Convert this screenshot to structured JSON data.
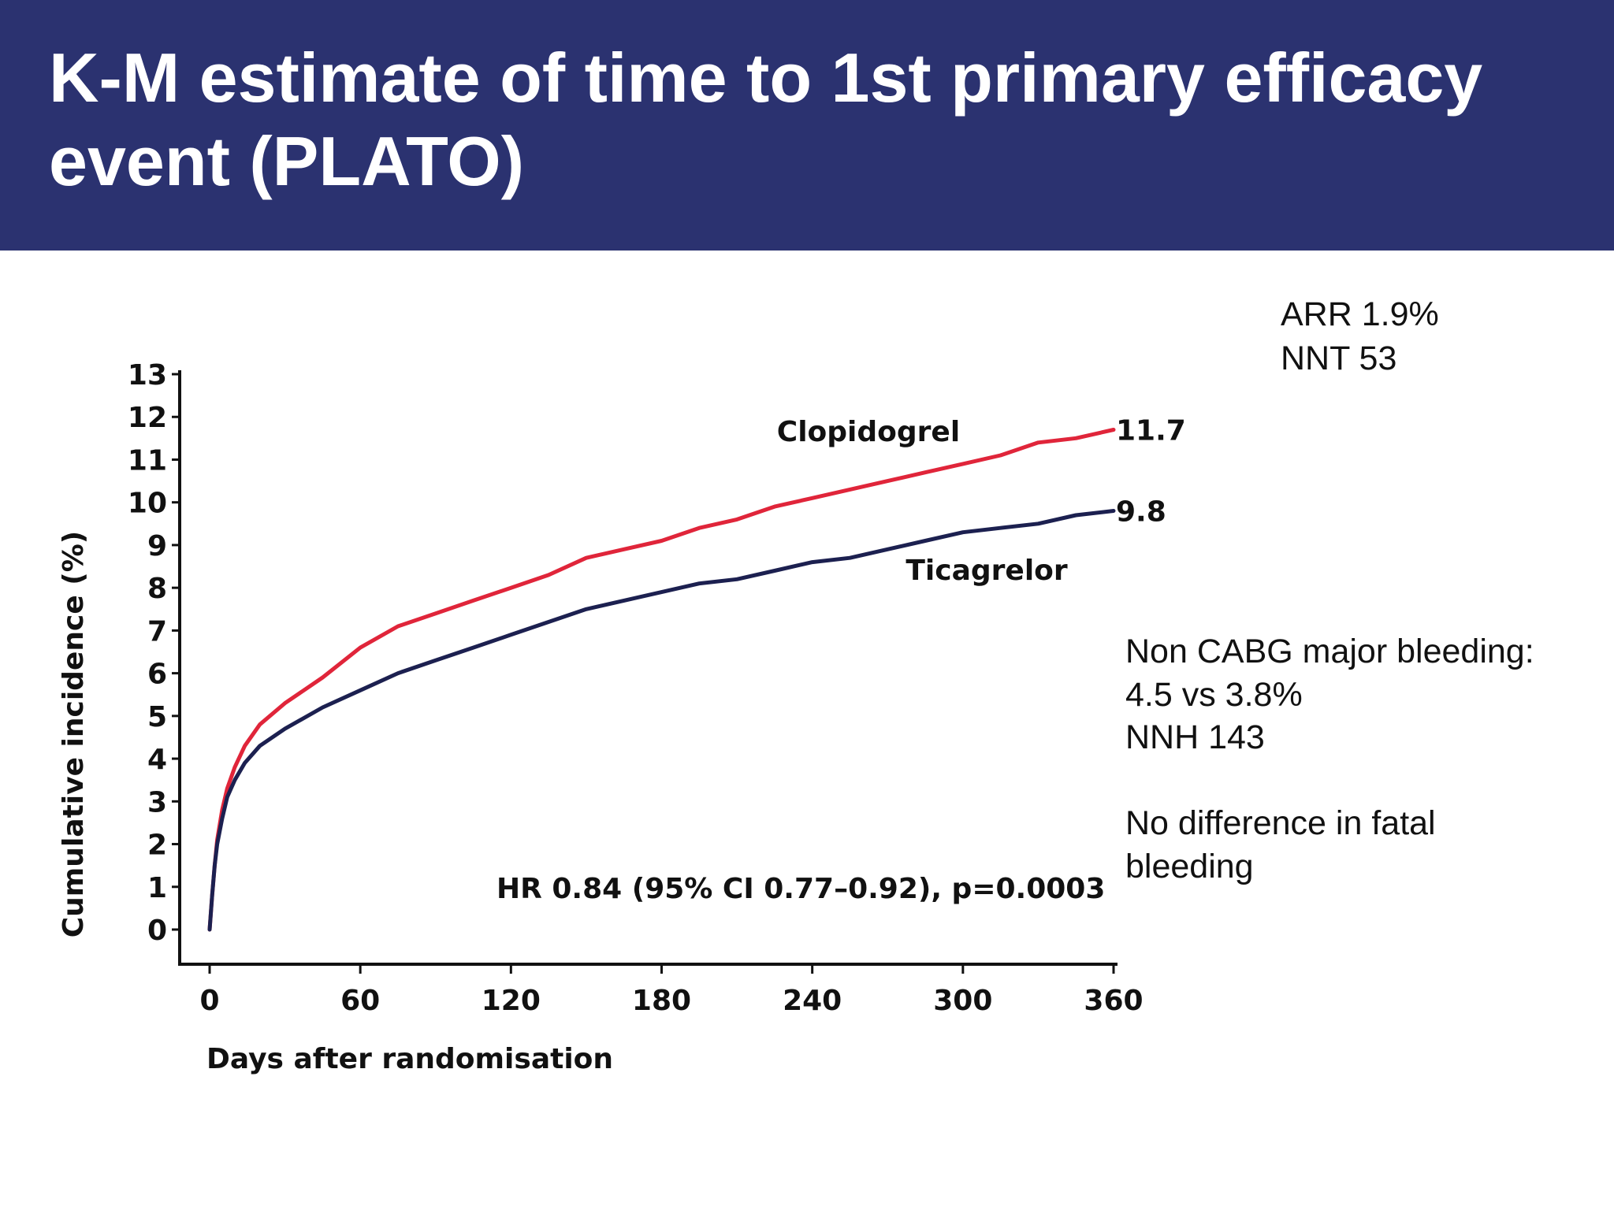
{
  "slide": {
    "title": "K-M estimate of time to 1st primary efficacy event (PLATO)",
    "header_color": "#2b3270"
  },
  "side_notes": {
    "arr": "ARR 1.9%",
    "nnt": "NNT 53",
    "bleeding_heading": "Non CABG major bleeding:",
    "bleeding_rates": "4.5 vs 3.8%",
    "nnh": "NNH 143",
    "fatal_line1": "No difference in fatal",
    "fatal_line2": "bleeding"
  },
  "chart_data": {
    "type": "line",
    "xlabel": "Days after randomisation",
    "ylabel": "Cumulative incidence (%)",
    "xlim": [
      0,
      360
    ],
    "ylim": [
      0,
      13
    ],
    "xticks": [
      0,
      60,
      120,
      180,
      240,
      300,
      360
    ],
    "yticks": [
      0,
      1,
      2,
      3,
      4,
      5,
      6,
      7,
      8,
      9,
      10,
      11,
      12,
      13
    ],
    "grid": false,
    "annotation": "HR 0.84 (95% CI 0.77–0.92), p=0.0003",
    "series": [
      {
        "name": "Clopidogrel",
        "color": "#e0253a",
        "end_label": "11.7",
        "x": [
          0,
          1,
          2,
          3,
          5,
          7,
          10,
          14,
          20,
          30,
          45,
          60,
          75,
          90,
          105,
          120,
          135,
          150,
          165,
          180,
          195,
          210,
          225,
          240,
          255,
          270,
          285,
          300,
          315,
          330,
          345,
          360
        ],
        "y": [
          0,
          0.8,
          1.5,
          2.1,
          2.8,
          3.3,
          3.8,
          4.3,
          4.8,
          5.3,
          5.9,
          6.6,
          7.1,
          7.4,
          7.7,
          8.0,
          8.3,
          8.7,
          8.9,
          9.1,
          9.4,
          9.6,
          9.9,
          10.1,
          10.3,
          10.5,
          10.7,
          10.9,
          11.1,
          11.4,
          11.5,
          11.7
        ]
      },
      {
        "name": "Ticagrelor",
        "color": "#1c2050",
        "end_label": "9.8",
        "x": [
          0,
          1,
          2,
          3,
          5,
          7,
          10,
          14,
          20,
          30,
          45,
          60,
          75,
          90,
          105,
          120,
          135,
          150,
          165,
          180,
          195,
          210,
          225,
          240,
          255,
          270,
          285,
          300,
          315,
          330,
          345,
          360
        ],
        "y": [
          0,
          0.8,
          1.5,
          2.0,
          2.6,
          3.1,
          3.5,
          3.9,
          4.3,
          4.7,
          5.2,
          5.6,
          6.0,
          6.3,
          6.6,
          6.9,
          7.2,
          7.5,
          7.7,
          7.9,
          8.1,
          8.2,
          8.4,
          8.6,
          8.7,
          8.9,
          9.1,
          9.3,
          9.4,
          9.5,
          9.7,
          9.8
        ]
      }
    ]
  }
}
